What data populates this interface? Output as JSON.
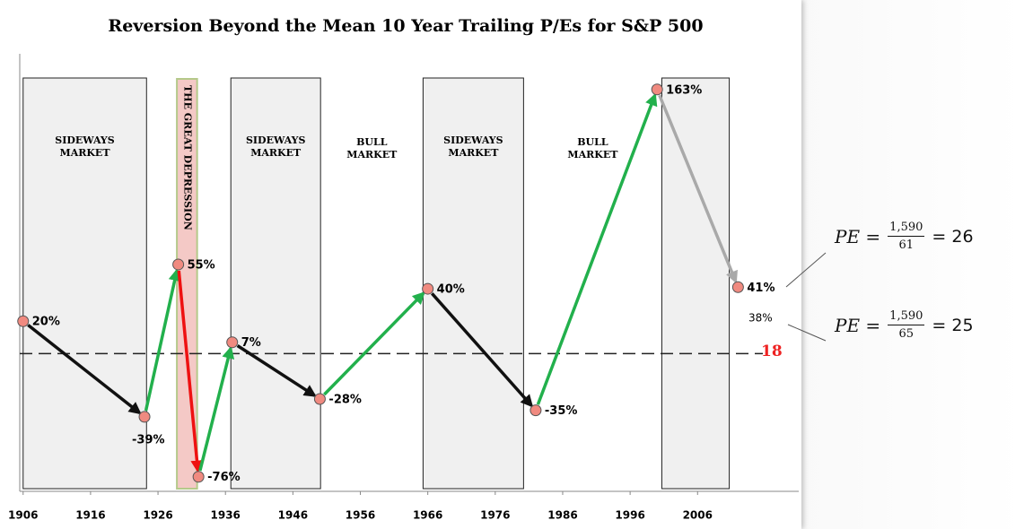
{
  "chart_data": {
    "type": "line",
    "title": "Reversion Beyond the Mean 10 Year Trailing P/Es for S&P 500",
    "x": [
      1906,
      1924,
      1929,
      1932,
      1937,
      1950,
      1966,
      1982,
      2000,
      2012
    ],
    "values": [
      20,
      -39,
      55,
      -76,
      7,
      -28,
      40,
      -35,
      163,
      41
    ],
    "value_labels": [
      "20%",
      "-39%",
      "55%",
      "-76%",
      "7%",
      "-28%",
      "40%",
      "-35%",
      "163%",
      "41%"
    ],
    "segment_colors": [
      "#111111",
      "#22b04c",
      "#ee1111",
      "#22b04c",
      "#111111",
      "#22b04c",
      "#111111",
      "#22b04c",
      "#a9a9a9"
    ],
    "point_color": "#f08a80",
    "xlim": [
      1905.5,
      2021
    ],
    "xticks": [
      1906,
      1916,
      1926,
      1936,
      1946,
      1956,
      1966,
      1976,
      1986,
      1996,
      2006
    ],
    "ylim": [
      -85,
      185
    ],
    "reference_line": {
      "y": 0,
      "label": "18",
      "color": "#ee2222"
    },
    "regions": [
      {
        "start": 1906,
        "end": 1924.3,
        "label": "SIDEWAYS MARKET",
        "shaded": true
      },
      {
        "start": 1928.8,
        "end": 1931.8,
        "label": "THE GREAT DEPRESSION",
        "shaded": true,
        "color": "#f4c9c6",
        "vertical": true
      },
      {
        "start": 1936.8,
        "end": 1950.1,
        "label": "SIDEWAYS MARKET",
        "shaded": true
      },
      {
        "start": 1950.1,
        "end": 1965.3,
        "label": "BULL MARKET",
        "shaded": false
      },
      {
        "start": 1965.3,
        "end": 1980.2,
        "label": "SIDEWAYS MARKET",
        "shaded": true
      },
      {
        "start": 1980.2,
        "end": 2000.7,
        "label": "BULL MARKET",
        "shaded": false
      },
      {
        "start": 2000.7,
        "end": 2010.7,
        "shaded": true
      }
    ],
    "annotations": [
      {
        "text": "38%",
        "value": 38
      }
    ],
    "formulas": [
      {
        "lhs": "PE =",
        "numerator": "1,590",
        "denominator": "61",
        "rhs": "= 26"
      },
      {
        "lhs": "PE =",
        "numerator": "1,590",
        "denominator": "65",
        "rhs": "= 25"
      }
    ]
  }
}
